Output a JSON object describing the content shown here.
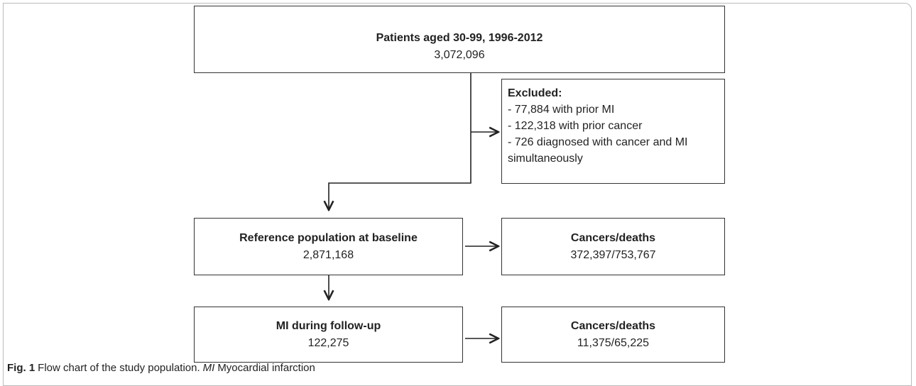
{
  "nodes": [
    {
      "title": "Patients aged 30-99, 1996-2012",
      "value": "3,072,096"
    },
    {
      "title": "Reference population at baseline",
      "value": "2,871,168"
    },
    {
      "title": "Cancers/deaths",
      "value": "372,397/753,767"
    },
    {
      "title": "MI during follow-up",
      "value": "122,275"
    },
    {
      "title": "Cancers/deaths",
      "value": "11,375/65,225"
    }
  ],
  "excluded": {
    "title": "Excluded:",
    "items": [
      "- 77,884 with prior MI",
      "- 122,318 with prior cancer",
      "- 726 diagnosed with cancer and MI simultaneously"
    ]
  },
  "caption": {
    "label": "Fig. 1",
    "text": "Flow chart of the study population.",
    "abbr": "MI",
    "abbr_text": "Myocardial infarction"
  }
}
